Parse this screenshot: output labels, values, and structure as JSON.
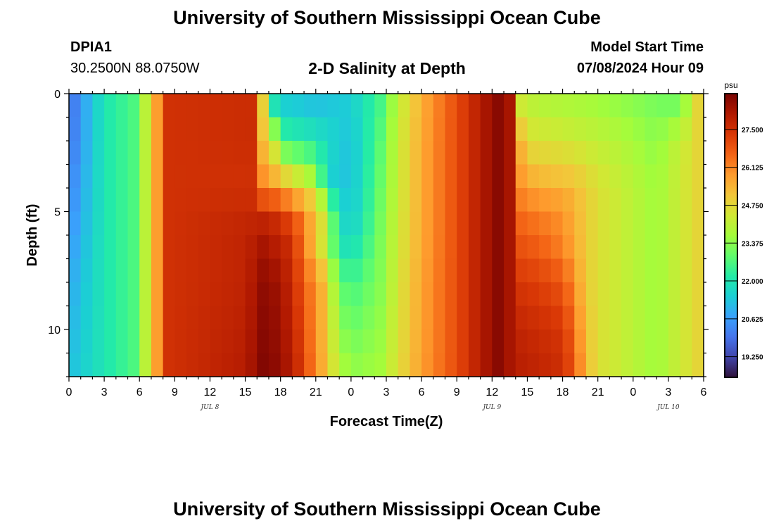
{
  "header": {
    "title": "University of Southern Mississippi Ocean Cube",
    "station_id": "DPIA1",
    "coordinates": "30.2500N  88.0750W",
    "subtitle": "2-D Salinity at Depth",
    "model_start_label": "Model Start Time",
    "model_start_value": "07/08/2024 Hour 09"
  },
  "footer": {
    "title": "University of Southern Mississippi Ocean Cube"
  },
  "chart_data": {
    "type": "heatmap",
    "title": "2-D Salinity at Depth",
    "xlabel": "Forecast Time(Z)",
    "ylabel": "Depth (ft)",
    "x_start_hour": 0,
    "x_end_hour": 54,
    "x_step_hours": 1,
    "xlim": [
      0,
      54
    ],
    "x_tick_labels": [
      "0",
      "3",
      "6",
      "9",
      "12",
      "15",
      "18",
      "21",
      "0",
      "3",
      "6",
      "9",
      "12",
      "15",
      "18",
      "21",
      "0",
      "3",
      "6"
    ],
    "date_labels": [
      {
        "label": "JUL 8",
        "hour": 12
      },
      {
        "label": "JUL 9",
        "hour": 36
      },
      {
        "label": "JUL 10",
        "hour": 51
      }
    ],
    "ylim": [
      0,
      12
    ],
    "y_tick_labels": [
      "0",
      "5",
      "10"
    ],
    "y_ticks": [
      0,
      5,
      10
    ],
    "depth_rows": 12,
    "colorbar": {
      "unit": "psu",
      "min": 18.5,
      "max": 28.8,
      "tick_values": [
        19.25,
        20.625,
        22.0,
        23.375,
        24.75,
        26.125,
        27.5
      ],
      "tick_labels": [
        "19.250",
        "20.625",
        "22.000",
        "23.375",
        "24.750",
        "26.125",
        "27.500"
      ],
      "colors": [
        "#30123b",
        "#4145ab",
        "#4675ed",
        "#39a2fc",
        "#1bcfd4",
        "#24eca6",
        "#61fc6c",
        "#a4fc3b",
        "#d1e834",
        "#f3c63a",
        "#fe9b2d",
        "#f36315",
        "#d93806",
        "#b11901",
        "#7a0402"
      ]
    },
    "anchor_rows": [
      {
        "depth_ft": 0,
        "hours": [
          0,
          3,
          6,
          6.7,
          7.5,
          8.5,
          16.0,
          16.5,
          17.0,
          18,
          21,
          24,
          26.5,
          28,
          30,
          33,
          35,
          36.5,
          37.5,
          38,
          38.5,
          40,
          44,
          49,
          52,
          53.5,
          54
        ],
        "values": [
          19.8,
          22.0,
          22.8,
          24.5,
          25.8,
          27.5,
          27.6,
          24.8,
          21.3,
          21.2,
          21.0,
          21.5,
          22.5,
          24.0,
          25.5,
          27.0,
          28.0,
          28.6,
          28.2,
          26.2,
          24.0,
          23.8,
          23.6,
          23.2,
          22.8,
          24.8,
          26.0
        ]
      },
      {
        "depth_ft": 2,
        "hours": [
          0,
          3,
          6,
          6.7,
          7.5,
          8.5,
          15.5,
          16.0,
          17.5,
          18,
          21,
          24,
          26.5,
          28,
          30,
          33,
          35,
          36.5,
          37.5,
          38,
          39,
          40,
          42,
          46,
          50,
          53.5,
          54
        ],
        "values": [
          19.9,
          22.0,
          22.8,
          24.5,
          25.8,
          27.5,
          27.6,
          25.8,
          24.0,
          22.5,
          22.0,
          21.2,
          22.8,
          24.2,
          25.6,
          27.0,
          28.0,
          28.6,
          28.2,
          26.0,
          24.6,
          24.5,
          24.4,
          24.0,
          23.4,
          24.8,
          26.0
        ]
      },
      {
        "depth_ft": 4,
        "hours": [
          0,
          3,
          6,
          6.7,
          7.5,
          8.5,
          15.5,
          16.5,
          18.5,
          21,
          22,
          24,
          26.5,
          28,
          30,
          33,
          35,
          36.5,
          37.5,
          38,
          39,
          40,
          43,
          45,
          50,
          53.5,
          54
        ],
        "values": [
          20.2,
          22.0,
          22.8,
          24.5,
          25.8,
          27.5,
          27.5,
          26.2,
          25.5,
          24.0,
          21.5,
          21.2,
          23.0,
          24.2,
          25.6,
          27.0,
          28.0,
          28.6,
          28.2,
          26.2,
          25.8,
          25.6,
          25.3,
          24.6,
          23.6,
          24.8,
          26.0
        ]
      },
      {
        "depth_ft": 5,
        "hours": [
          0,
          3,
          6,
          6.7,
          7.5,
          8.5,
          15.0,
          17.5,
          20.0,
          21.5,
          23,
          24,
          26.5,
          28,
          30,
          33,
          35,
          36.5,
          37.5,
          38,
          40,
          42,
          43,
          44,
          45,
          50,
          53.5,
          54
        ],
        "values": [
          20.3,
          22.0,
          22.8,
          24.5,
          25.8,
          27.5,
          27.7,
          27.5,
          26.2,
          25.0,
          22.0,
          21.3,
          23.1,
          24.3,
          25.6,
          27.0,
          28.0,
          28.6,
          28.2,
          26.5,
          26.2,
          26.0,
          25.5,
          25.0,
          24.6,
          23.6,
          24.8,
          26.0
        ]
      },
      {
        "depth_ft": 6,
        "hours": [
          0,
          3,
          6,
          6.7,
          7.5,
          8.5,
          15.0,
          16.5,
          19.0,
          20.5,
          22,
          23,
          24,
          26.5,
          28,
          30,
          33,
          35,
          36.5,
          37.5,
          38,
          40,
          42,
          43,
          44,
          45,
          50,
          53.5,
          54
        ],
        "values": [
          20.5,
          22.0,
          22.8,
          24.5,
          25.8,
          27.5,
          27.8,
          28.1,
          27.5,
          25.5,
          23.5,
          21.8,
          21.5,
          23.2,
          24.3,
          25.6,
          27.0,
          28.0,
          28.6,
          28.2,
          26.8,
          26.5,
          26.0,
          25.5,
          25.0,
          24.6,
          23.6,
          24.8,
          26.0
        ]
      },
      {
        "depth_ft": 8,
        "hours": [
          0,
          3,
          6,
          6.7,
          7.5,
          8.5,
          15.0,
          16.5,
          18.0,
          19.5,
          21.5,
          23,
          24,
          26.5,
          28,
          30,
          33,
          35,
          36.5,
          37.5,
          38,
          40,
          42,
          43,
          44,
          45,
          50,
          53.5,
          54
        ],
        "values": [
          20.8,
          22.0,
          22.8,
          24.5,
          25.8,
          27.5,
          27.8,
          28.5,
          28.3,
          27.2,
          25.5,
          23.0,
          22.5,
          23.3,
          24.4,
          25.7,
          27.0,
          28.0,
          28.6,
          28.2,
          27.4,
          27.2,
          26.8,
          26.0,
          25.0,
          24.6,
          23.6,
          24.8,
          26.0
        ]
      },
      {
        "depth_ft": 10,
        "hours": [
          0,
          3,
          6,
          6.7,
          7.5,
          8.5,
          15.0,
          16.5,
          18.0,
          19.5,
          21.5,
          23,
          24,
          26.5,
          28,
          30,
          33,
          35,
          36.5,
          37.5,
          38,
          40,
          42,
          43,
          44,
          45,
          50,
          53.5,
          54
        ],
        "values": [
          21.0,
          22.0,
          22.8,
          24.5,
          25.8,
          27.5,
          27.9,
          28.6,
          28.4,
          27.4,
          25.5,
          23.5,
          23.0,
          23.5,
          24.5,
          25.7,
          27.0,
          28.0,
          28.6,
          28.2,
          27.8,
          27.6,
          27.4,
          26.5,
          25.2,
          24.6,
          23.6,
          24.8,
          26.0
        ]
      },
      {
        "depth_ft": 12,
        "hours": [
          0,
          3,
          6,
          6.7,
          7.5,
          8.5,
          15.0,
          16.5,
          18.0,
          19.5,
          21.5,
          23,
          24,
          26.5,
          28,
          30,
          33,
          35,
          36.5,
          37.5,
          38,
          40,
          42,
          43,
          44,
          45,
          50,
          53.5,
          54
        ],
        "values": [
          21.2,
          22.0,
          22.8,
          24.5,
          25.8,
          27.5,
          28.0,
          28.7,
          28.5,
          27.6,
          25.6,
          24.0,
          23.5,
          23.7,
          24.6,
          25.8,
          27.0,
          28.0,
          28.6,
          28.2,
          28.0,
          27.8,
          27.6,
          26.8,
          25.4,
          24.6,
          23.6,
          24.8,
          26.0
        ]
      }
    ]
  }
}
